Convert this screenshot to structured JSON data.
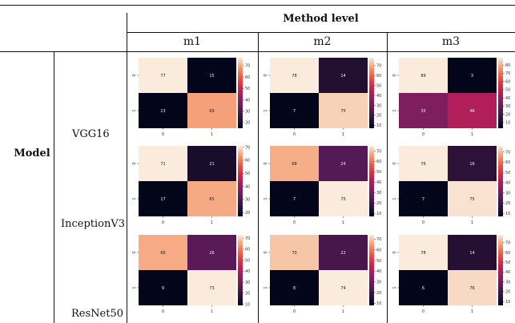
{
  "table": {
    "group_header": "Method level",
    "row_group_label": "Model",
    "columns": [
      "m1",
      "m2",
      "m3"
    ],
    "rows": [
      "VGG16",
      "InceptionV3",
      "ResNet50"
    ]
  },
  "chart_data": [
    {
      "type": "heatmap",
      "model": "VGG16",
      "method": "m1",
      "values": [
        [
          77,
          15
        ],
        [
          13,
          69
        ]
      ],
      "x_tick_labels": [
        "0",
        "1"
      ],
      "y_tick_labels": [
        "0",
        "1"
      ],
      "colorbar": {
        "min": 15,
        "max": 77,
        "ticks": [
          20,
          30,
          40,
          50,
          60,
          70
        ]
      }
    },
    {
      "type": "heatmap",
      "model": "VGG16",
      "method": "m2",
      "values": [
        [
          78,
          14
        ],
        [
          7,
          75
        ]
      ],
      "x_tick_labels": [
        "0",
        "1"
      ],
      "y_tick_labels": [
        "0",
        "1"
      ],
      "colorbar": {
        "min": 7,
        "max": 78,
        "ticks": [
          10,
          20,
          30,
          40,
          50,
          60,
          70
        ]
      }
    },
    {
      "type": "heatmap",
      "model": "VGG16",
      "method": "m3",
      "values": [
        [
          89,
          3
        ],
        [
          35,
          46
        ]
      ],
      "x_tick_labels": [
        "0",
        "1"
      ],
      "y_tick_labels": [
        "0",
        "1"
      ],
      "colorbar": {
        "min": 3,
        "max": 89,
        "ticks": [
          10,
          20,
          30,
          40,
          50,
          60,
          70,
          80
        ]
      }
    },
    {
      "type": "heatmap",
      "model": "InceptionV3",
      "method": "m1",
      "values": [
        [
          71,
          21
        ],
        [
          17,
          65
        ]
      ],
      "x_tick_labels": [
        "0",
        "1"
      ],
      "y_tick_labels": [
        "0",
        "1"
      ],
      "colorbar": {
        "min": 17,
        "max": 71,
        "ticks": [
          20,
          30,
          40,
          50,
          60,
          70
        ]
      }
    },
    {
      "type": "heatmap",
      "model": "InceptionV3",
      "method": "m2",
      "values": [
        [
          68,
          24
        ],
        [
          7,
          75
        ]
      ],
      "x_tick_labels": [
        "0",
        "1"
      ],
      "y_tick_labels": [
        "0",
        "1"
      ],
      "colorbar": {
        "min": 7,
        "max": 75,
        "ticks": [
          10,
          20,
          30,
          40,
          50,
          60,
          70
        ]
      }
    },
    {
      "type": "heatmap",
      "model": "InceptionV3",
      "method": "m3",
      "values": [
        [
          76,
          16
        ],
        [
          7,
          75
        ]
      ],
      "x_tick_labels": [
        "0",
        "1"
      ],
      "y_tick_labels": [
        "0",
        "1"
      ],
      "colorbar": {
        "min": 7,
        "max": 76,
        "ticks": [
          10,
          20,
          30,
          40,
          50,
          60,
          70
        ]
      }
    },
    {
      "type": "heatmap",
      "model": "ResNet50",
      "method": "m1",
      "values": [
        [
          66,
          26
        ],
        [
          9,
          73
        ]
      ],
      "x_tick_labels": [
        "0",
        "1"
      ],
      "y_tick_labels": [
        "0",
        "1"
      ],
      "colorbar": {
        "min": 9,
        "max": 73,
        "ticks": [
          10,
          20,
          30,
          40,
          50,
          60,
          70
        ]
      }
    },
    {
      "type": "heatmap",
      "model": "ResNet50",
      "method": "m2",
      "values": [
        [
          70,
          22
        ],
        [
          8,
          74
        ]
      ],
      "x_tick_labels": [
        "0",
        "1"
      ],
      "y_tick_labels": [
        "0",
        "1"
      ],
      "colorbar": {
        "min": 8,
        "max": 74,
        "ticks": [
          10,
          20,
          30,
          40,
          50,
          60,
          70
        ]
      }
    },
    {
      "type": "heatmap",
      "model": "ResNet50",
      "method": "m3",
      "values": [
        [
          78,
          14
        ],
        [
          6,
          76
        ]
      ],
      "x_tick_labels": [
        "0",
        "1"
      ],
      "y_tick_labels": [
        "0",
        "1"
      ],
      "colorbar": {
        "min": 6,
        "max": 78,
        "ticks": [
          10,
          20,
          30,
          40,
          50,
          60,
          70
        ]
      }
    }
  ]
}
